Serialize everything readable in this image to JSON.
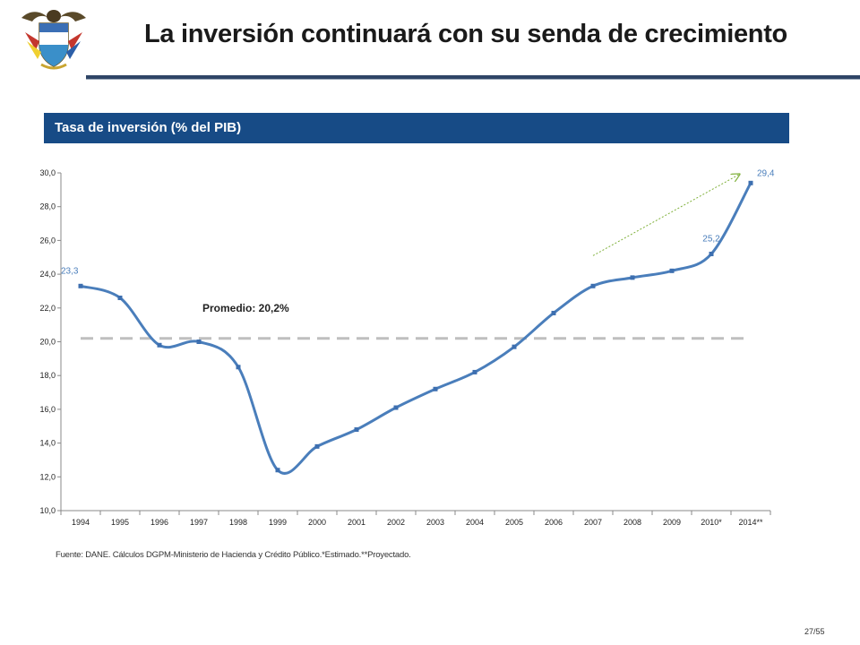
{
  "slide": {
    "title": "La inversión continuará con su senda de crecimiento",
    "section_label": "Tasa de inversión (% del PIB)",
    "source_note": "Fuente: DANE. Cálculos DGPM-Ministerio de Hacienda y Crédito Público.*Estimado.**Proyectado.",
    "page_number": "27/55"
  },
  "colors": {
    "banner": "#174b86",
    "line": "#4a7ebb",
    "marker": "#3d6fb0",
    "average_line": "#bfbfbf",
    "trend_arrow": "#7fb03a",
    "data_label": "#4a7ebb"
  },
  "chart_data": {
    "type": "line",
    "categories": [
      "1994",
      "1995",
      "1996",
      "1997",
      "1998",
      "1999",
      "2000",
      "2001",
      "2002",
      "2003",
      "2004",
      "2005",
      "2006",
      "2007",
      "2008",
      "2009",
      "2010*",
      "2014**"
    ],
    "series": [
      {
        "values": [
          23.3,
          22.6,
          19.8,
          20.0,
          18.5,
          12.4,
          13.8,
          14.8,
          16.1,
          17.2,
          18.2,
          19.7,
          21.7,
          23.3,
          23.8,
          24.2,
          25.2,
          29.4
        ]
      }
    ],
    "yticks": [
      "10,0",
      "12,0",
      "14,0",
      "16,0",
      "18,0",
      "20,0",
      "22,0",
      "24,0",
      "26,0",
      "28,0",
      "30,0"
    ],
    "ylim": [
      10,
      30
    ],
    "data_labels": [
      {
        "index": 0,
        "text": "23,3"
      },
      {
        "index": 16,
        "text": "25,2"
      },
      {
        "index": 17,
        "text": "29,4"
      }
    ],
    "average": {
      "value": 20.2,
      "label": "Promedio: 20,2%"
    },
    "trend_arrow": {
      "from_index": 13,
      "from_value": 25.1,
      "to_index": 16.7,
      "to_value": 29.9
    },
    "grid": false
  }
}
